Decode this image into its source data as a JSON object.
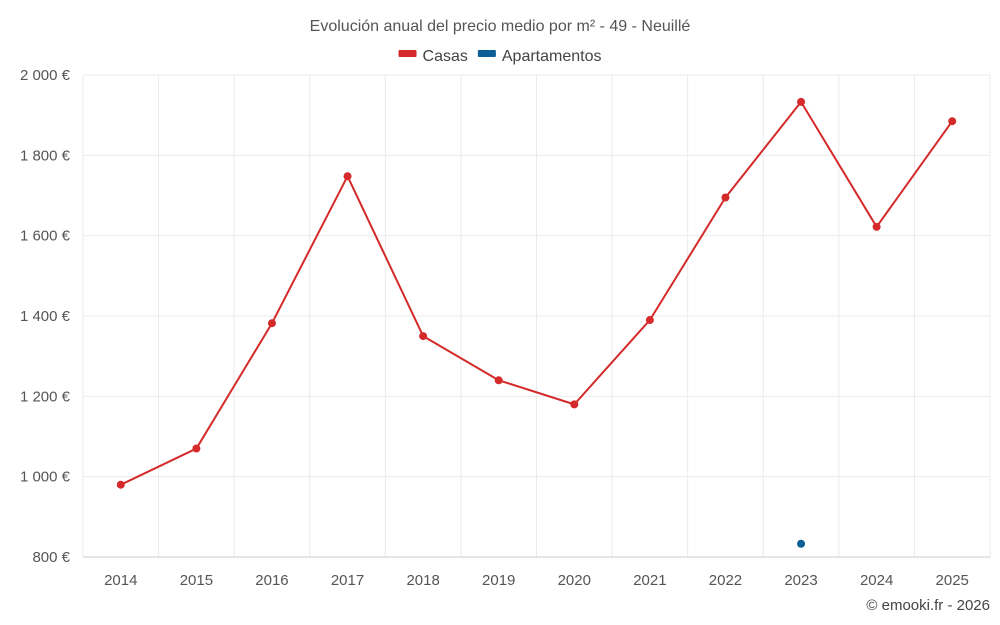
{
  "chart_data": {
    "type": "line",
    "title": "Evolución anual del precio medio por m² - 49 - Neuillé",
    "categories": [
      "2014",
      "2015",
      "2016",
      "2017",
      "2018",
      "2019",
      "2020",
      "2021",
      "2022",
      "2023",
      "2024",
      "2025"
    ],
    "series": [
      {
        "name": "Casas",
        "color": "#d42a2a",
        "values": [
          980,
          1070,
          1382,
          1748,
          1350,
          1240,
          1180,
          1390,
          1695,
          1933,
          1622,
          1885
        ]
      },
      {
        "name": "Apartamentos",
        "color": "#0b5f96",
        "values": [
          null,
          null,
          null,
          null,
          null,
          null,
          null,
          null,
          null,
          833,
          null,
          null
        ]
      }
    ],
    "y_ticks": [
      800,
      1000,
      1200,
      1400,
      1600,
      1800,
      2000
    ],
    "y_tick_labels": [
      "800 €",
      "1 000 €",
      "1 200 €",
      "1 400 €",
      "1 600 €",
      "1 800 €",
      "2 000 €"
    ],
    "ylim": [
      800,
      2000
    ],
    "xlabel": "",
    "ylabel": "",
    "grid": true,
    "legend_position": "top-center"
  },
  "credit": "© emooki.fr - 2026"
}
